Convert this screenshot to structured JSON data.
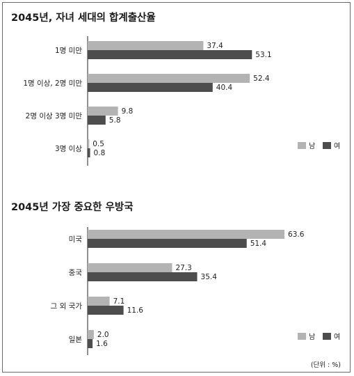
{
  "colors": {
    "male": "#b3b3b3",
    "female": "#4d4d4d",
    "axis": "#222222"
  },
  "legend": {
    "male": "남",
    "female": "여"
  },
  "unit_note": "(단위 : %)",
  "chart_data": [
    {
      "type": "bar",
      "orientation": "horizontal",
      "title": "2045년, 자녀 세대의 합계출산율",
      "categories": [
        "1명 미만",
        "1명 이상, 2명 미만",
        "2명 이상 3명 미만",
        "3명 이상"
      ],
      "series": [
        {
          "name": "남",
          "values": [
            37.4,
            52.4,
            9.8,
            0.5
          ]
        },
        {
          "name": "여",
          "values": [
            53.1,
            40.4,
            5.8,
            0.8
          ]
        }
      ],
      "xlim": [
        0,
        70
      ],
      "legend_position": "bottom-right"
    },
    {
      "type": "bar",
      "orientation": "horizontal",
      "title": "2045년 가장 중요한 우방국",
      "categories": [
        "미국",
        "중국",
        "그 외 국가",
        "일본"
      ],
      "series": [
        {
          "name": "남",
          "values": [
            63.6,
            27.3,
            7.1,
            2.0
          ]
        },
        {
          "name": "여",
          "values": [
            51.4,
            35.4,
            11.6,
            1.6
          ]
        }
      ],
      "xlim": [
        0,
        70
      ],
      "legend_position": "bottom-right"
    }
  ]
}
